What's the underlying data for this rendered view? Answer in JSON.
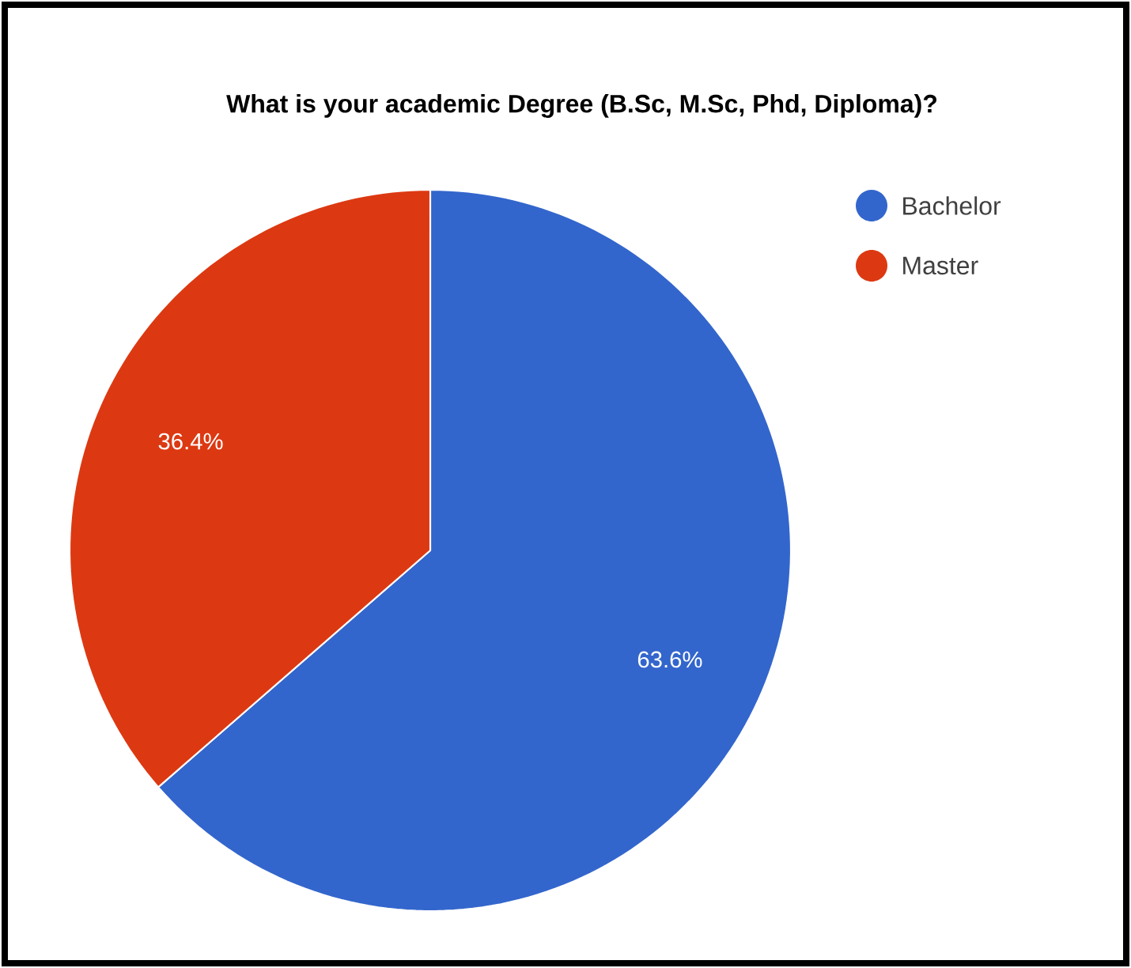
{
  "chart_data": {
    "type": "pie",
    "title": "What is your academic Degree (B.Sc, M.Sc, Phd, Diploma)?",
    "categories": [
      "Bachelor",
      "Master"
    ],
    "values": [
      63.6,
      36.4
    ],
    "colors": [
      "#3366cc",
      "#dc3912"
    ],
    "value_labels": [
      "63.6%",
      "36.4%"
    ],
    "legend": "top right"
  }
}
